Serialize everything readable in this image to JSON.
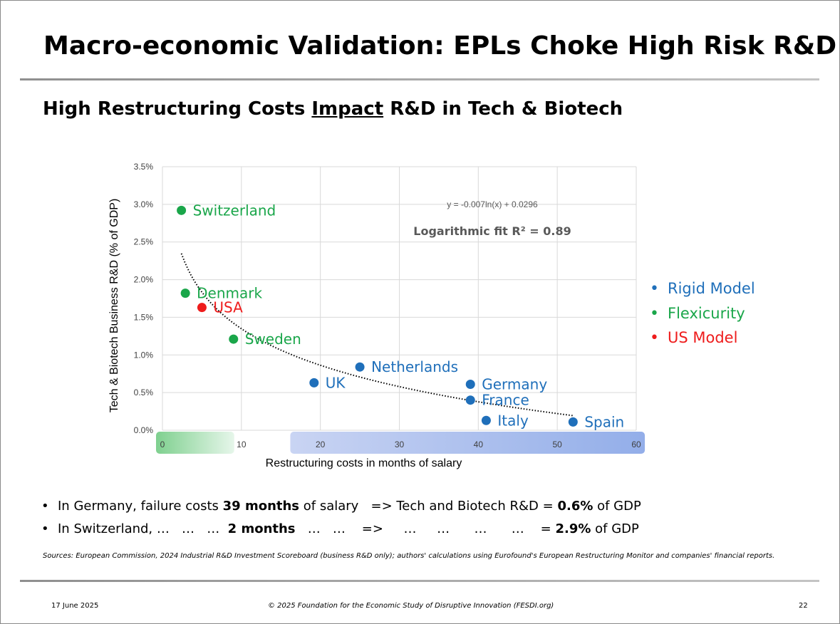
{
  "slide": {
    "title": "Macro-economic Validation: EPLs Choke High Risk R&D",
    "subtitle_before": "High Restructuring Costs ",
    "subtitle_underlined": "Impact",
    "subtitle_after": " R&D in Tech & Biotech"
  },
  "legend": [
    {
      "label": "Rigid Model",
      "color": "#1f6fba"
    },
    {
      "label": "Flexicurity",
      "color": "#1aa64a"
    },
    {
      "label": "US Model",
      "color": "#ee1c1c"
    }
  ],
  "bullets": [
    {
      "marker": "•",
      "parts": [
        {
          "text": "In Germany, failure costs ",
          "bold": false
        },
        {
          "text": "39 months",
          "bold": true
        },
        {
          "text": " of salary   => Tech and Biotech R&D = ",
          "bold": false
        },
        {
          "text": "0.6%",
          "bold": true
        },
        {
          "text": " of GDP",
          "bold": false
        }
      ]
    },
    {
      "marker": "•",
      "parts": [
        {
          "text": "In Switzerland, …   …   …  ",
          "bold": false
        },
        {
          "text": "2 months",
          "bold": true
        },
        {
          "text": "   …   …    =>     …     …      …      …    = ",
          "bold": false
        },
        {
          "text": "2.9%",
          "bold": true
        },
        {
          "text": " of GDP",
          "bold": false
        }
      ]
    }
  ],
  "sources": "Sources: European Commission, 2024 Industrial R&D Investment Scoreboard (business R&D only); authors' calculations using Eurofound's European Restructuring Monitor and companies' financial reports.",
  "footer": {
    "date": "17 June 2025",
    "copyright": "© 2025 Foundation for the Economic Study of Disruptive Innovation (FESDI.org)",
    "page": "22"
  },
  "chart_data": {
    "type": "scatter",
    "xlabel": "Restructuring costs in months of salary",
    "ylabel": "Tech & Biotech Business R&D (% of GDP)",
    "xlim": [
      0,
      60
    ],
    "ylim": [
      0,
      3.5
    ],
    "x_ticks": [
      0,
      10,
      20,
      30,
      40,
      50,
      60
    ],
    "x_tick_labels": [
      "0",
      "10",
      "20",
      "30",
      "40",
      "50",
      "60"
    ],
    "y_ticks": [
      0,
      0.5,
      1.0,
      1.5,
      2.0,
      2.5,
      3.0,
      3.5
    ],
    "y_tick_labels": [
      "0.0%",
      "0.5%",
      "1.0%",
      "1.5%",
      "2.0%",
      "2.5%",
      "3.0%",
      "3.5%"
    ],
    "grid": true,
    "axis_bands": [
      {
        "from": 0,
        "to": 9,
        "color_start": "#7fd08f",
        "color_end": "#e6f6ea"
      },
      {
        "from": 17,
        "to": 61,
        "color_start": "#c9d4f3",
        "color_end": "#93aee9"
      }
    ],
    "series": [
      {
        "name": "Rigid Model",
        "color": "#1f6fba",
        "points": [
          {
            "label": "UK",
            "x": 19.2,
            "y": 0.63
          },
          {
            "label": "Netherlands",
            "x": 25,
            "y": 0.84
          },
          {
            "label": "Germany",
            "x": 39,
            "y": 0.61
          },
          {
            "label": "France",
            "x": 39,
            "y": 0.4
          },
          {
            "label": "Italy",
            "x": 41,
            "y": 0.13
          },
          {
            "label": "Spain",
            "x": 52,
            "y": 0.11
          }
        ]
      },
      {
        "name": "Flexicurity",
        "color": "#1aa64a",
        "points": [
          {
            "label": "Switzerland",
            "x": 2.4,
            "y": 2.92
          },
          {
            "label": "Denmark",
            "x": 2.9,
            "y": 1.82
          },
          {
            "label": "Sweden",
            "x": 9,
            "y": 1.21
          }
        ]
      },
      {
        "name": "US Model",
        "color": "#ee1c1c",
        "points": [
          {
            "label": "USA",
            "x": 5,
            "y": 1.63
          }
        ]
      }
    ],
    "trendline": {
      "type": "logarithmic",
      "a": -0.007,
      "b": 0.0296,
      "x_from": 2.4,
      "x_to": 52,
      "equation": "y = -0.007ln(x) + 0.0296",
      "fit_label": "Logarithmic fit R² = 0.89"
    }
  }
}
